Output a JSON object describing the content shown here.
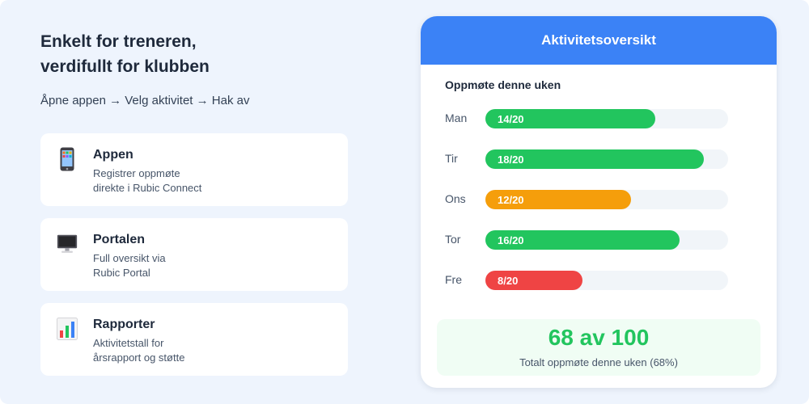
{
  "left": {
    "headline_line1": "Enkelt for treneren,",
    "headline_line2": "verdifullt for klubben",
    "subtitle": "Åpne appen → Velg aktivitet → Hak av",
    "features": [
      {
        "icon": "mobile-phone-icon",
        "title": "Appen",
        "line1": "Registrer oppmøte",
        "line2": "direkte i Rubic Connect"
      },
      {
        "icon": "desktop-computer-icon",
        "title": "Portalen",
        "line1": "Full oversikt via",
        "line2": "Rubic Portal"
      },
      {
        "icon": "bar-chart-icon",
        "title": "Rapporter",
        "line1": "Aktivitetstall for",
        "line2": "årsrapport og støtte"
      }
    ]
  },
  "panel": {
    "title": "Aktivitetsoversikt",
    "section_title": "Oppmøte denne uken",
    "summary_value": "68 av 100",
    "summary_label": "Totalt oppmøte denne uken (68%)"
  },
  "colors": {
    "header": "#3b82f6",
    "green": "#22c55e",
    "orange": "#f59e0b",
    "red": "#ef4444",
    "track": "#f1f5f9"
  },
  "chart_data": {
    "type": "bar",
    "title": "Oppmøte denne uken",
    "categories": [
      "Man",
      "Tir",
      "Ons",
      "Tor",
      "Fre"
    ],
    "values": [
      14,
      18,
      12,
      16,
      8
    ],
    "max": 20,
    "labels": [
      "14/20",
      "18/20",
      "12/20",
      "16/20",
      "8/20"
    ],
    "colors": [
      "#22c55e",
      "#22c55e",
      "#f59e0b",
      "#22c55e",
      "#ef4444"
    ]
  }
}
